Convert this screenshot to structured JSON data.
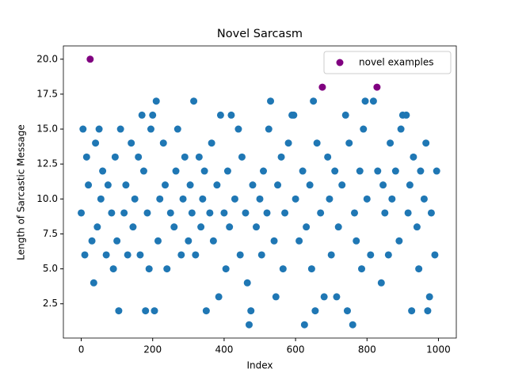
{
  "chart_data": {
    "type": "scatter",
    "title": "Novel Sarcasm",
    "x_label": "Index",
    "y_label": "Length of Sarcastic Message",
    "xlim": [
      -50,
      1050
    ],
    "ylim": [
      0.05,
      20.95
    ],
    "xticks": [
      0,
      200,
      400,
      600,
      800,
      1000
    ],
    "yticks": [
      2.5,
      {
        "value": 5,
        "label": "5.0"
      },
      7.5,
      {
        "value": 10,
        "label": "10.0"
      },
      12.5,
      {
        "value": 15,
        "label": "15.0"
      },
      17.5,
      {
        "value": 20,
        "label": "20.0"
      }
    ],
    "legend": "upper right",
    "series": [
      {
        "color": "#1f77b4",
        "x": [
          0,
          5,
          10,
          15,
          20,
          30,
          35,
          40,
          45,
          50,
          55,
          60,
          70,
          75,
          85,
          90,
          95,
          100,
          105,
          110,
          120,
          125,
          130,
          140,
          145,
          150,
          160,
          165,
          170,
          175,
          180,
          185,
          190,
          195,
          200,
          205,
          210,
          215,
          220,
          230,
          235,
          240,
          250,
          260,
          265,
          270,
          280,
          285,
          290,
          300,
          305,
          310,
          315,
          320,
          330,
          335,
          340,
          345,
          350,
          360,
          365,
          370,
          380,
          385,
          390,
          400,
          405,
          410,
          415,
          420,
          430,
          440,
          445,
          450,
          460,
          465,
          470,
          475,
          480,
          490,
          500,
          505,
          510,
          520,
          525,
          530,
          540,
          545,
          550,
          560,
          565,
          570,
          580,
          590,
          595,
          600,
          610,
          620,
          625,
          630,
          640,
          645,
          650,
          655,
          660,
          670,
          680,
          690,
          695,
          700,
          710,
          715,
          720,
          730,
          740,
          745,
          750,
          760,
          765,
          770,
          780,
          785,
          790,
          795,
          800,
          810,
          818,
          830,
          840,
          845,
          850,
          860,
          865,
          870,
          880,
          890,
          895,
          900,
          910,
          915,
          920,
          925,
          930,
          940,
          945,
          950,
          960,
          965,
          970,
          975,
          980,
          990,
          995
        ],
        "values": [
          9,
          15,
          6,
          13,
          11,
          7,
          4,
          14,
          8,
          15,
          10,
          12,
          6,
          11,
          9,
          5,
          13,
          7,
          2,
          15,
          9,
          11,
          6,
          14,
          8,
          10,
          13,
          6,
          16,
          12,
          2,
          9,
          5,
          15,
          16,
          2,
          17,
          7,
          10,
          14,
          11,
          5,
          9,
          8,
          12,
          15,
          6,
          10,
          13,
          7,
          11,
          9,
          17,
          6,
          13,
          8,
          10,
          12,
          2,
          9,
          14,
          7,
          11,
          3,
          16,
          9,
          5,
          12,
          8,
          16,
          10,
          15,
          6,
          13,
          9,
          4,
          1,
          2,
          11,
          8,
          10,
          6,
          12,
          9,
          15,
          17,
          7,
          3,
          11,
          13,
          5,
          9,
          14,
          16,
          16,
          10,
          7,
          12,
          1,
          8,
          11,
          5,
          17,
          2,
          14,
          9,
          3,
          13,
          10,
          6,
          12,
          3,
          8,
          11,
          16,
          2,
          14,
          1,
          9,
          7,
          12,
          5,
          15,
          17,
          10,
          6,
          17,
          12,
          4,
          11,
          9,
          6,
          14,
          10,
          12,
          7,
          15,
          16,
          16,
          9,
          11,
          2,
          13,
          8,
          5,
          12,
          10,
          14,
          2,
          3,
          9,
          6,
          12
        ]
      },
      {
        "name": "novel examples",
        "color": "#800080",
        "x": [
          25,
          675,
          828
        ],
        "values": [
          20,
          18,
          18
        ]
      }
    ]
  }
}
